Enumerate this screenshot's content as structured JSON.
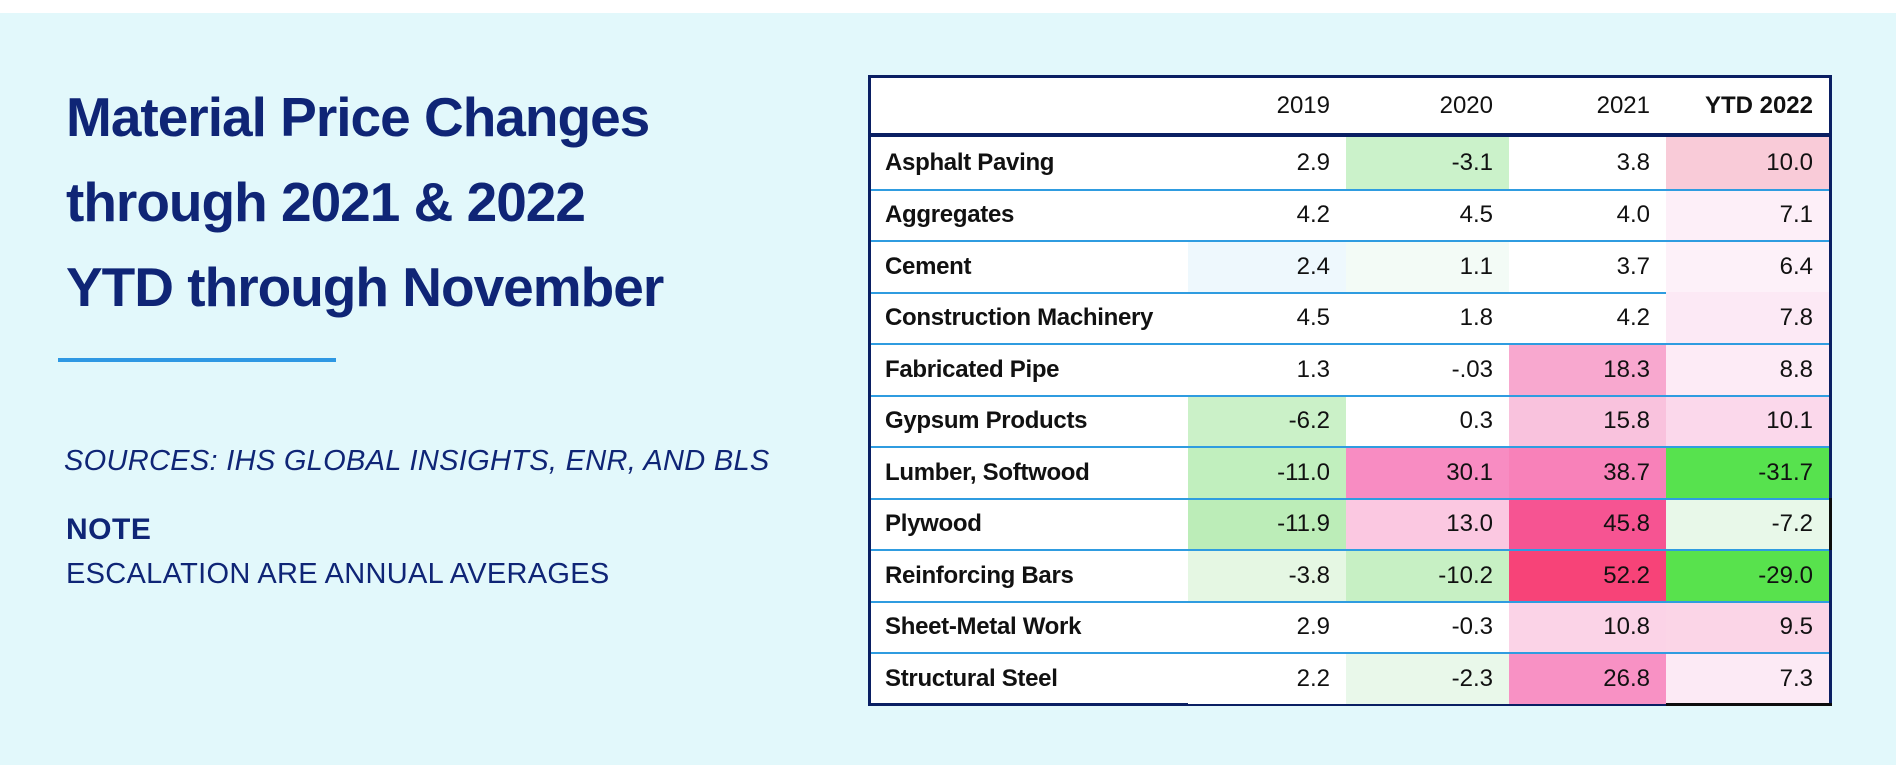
{
  "page": {
    "background_color": "#e2f8fb",
    "accent_navy": "#0f2576",
    "divider_blue": "#2e98e3",
    "separator_blue": "#2f9ce0",
    "title_lines": [
      "Material Price Changes",
      "through 2021 & 2022",
      "YTD through November"
    ],
    "sources_text": "SOURCES: IHS GLOBAL INSIGHTS, ENR, AND BLS",
    "note_label": "NOTE",
    "note_text": "ESCALATION ARE ANNUAL AVERAGES"
  },
  "chart_data": {
    "type": "table",
    "title": "Material Price Changes through 2021 & 2022 YTD through November",
    "legend_note": "cell shading: green = price decrease, pink/red = price increase; intensity scales with magnitude",
    "columns": [
      "",
      "2019",
      "2020",
      "2021",
      "YTD 2022"
    ],
    "rows": [
      {
        "material": "Asphalt Paving",
        "values": [
          "2.9",
          "-3.1",
          "3.8",
          "10.0"
        ],
        "colors": [
          "#ffffff",
          "#cbf2ca",
          "#ffffff",
          "#f9cbd8"
        ]
      },
      {
        "material": "Aggregates",
        "values": [
          "4.2",
          "4.5",
          "4.0",
          "7.1"
        ],
        "colors": [
          "#ffffff",
          "#ffffff",
          "#ffffff",
          "#fdeff8"
        ]
      },
      {
        "material": "Cement",
        "values": [
          "2.4",
          "1.1",
          "3.7",
          "6.4"
        ],
        "colors": [
          "#eef8fd",
          "#f3fbf6",
          "#ffffff",
          "#fdf1f9"
        ]
      },
      {
        "material": "Construction Machinery",
        "values": [
          "4.5",
          "1.8",
          "4.2",
          "7.8"
        ],
        "colors": [
          "#ffffff",
          "#ffffff",
          "#ffffff",
          "#fce9f5"
        ]
      },
      {
        "material": "Fabricated Pipe",
        "values": [
          "1.3",
          "-.03",
          "18.3",
          "8.8"
        ],
        "colors": [
          "#ffffff",
          "#ffffff",
          "#f8a8cf",
          "#fdebf6"
        ]
      },
      {
        "material": "Gypsum Products",
        "values": [
          "-6.2",
          "0.3",
          "15.8",
          "10.1"
        ],
        "colors": [
          "#cbf1c8",
          "#ffffff",
          "#f9c2dd",
          "#fbd8eb"
        ]
      },
      {
        "material": "Lumber, Softwood",
        "values": [
          "-11.0",
          "30.1",
          "38.7",
          "-31.7"
        ],
        "colors": [
          "#c1efbe",
          "#f88cc2",
          "#f881b9",
          "#57e24e"
        ]
      },
      {
        "material": "Plywood",
        "values": [
          "-11.9",
          "13.0",
          "45.8",
          "-7.2"
        ],
        "colors": [
          "#bcedb8",
          "#fbc8e1",
          "#f65492",
          "#e8f8e9"
        ]
      },
      {
        "material": "Reinforcing Bars",
        "values": [
          "-3.8",
          "-10.2",
          "52.2",
          "-29.0"
        ],
        "colors": [
          "#e5f7e3",
          "#c7f0c4",
          "#f74378",
          "#58e24d"
        ]
      },
      {
        "material": "Sheet-Metal Work",
        "values": [
          "2.9",
          "-0.3",
          "10.8",
          "9.5"
        ],
        "colors": [
          "#ffffff",
          "#ffffff",
          "#fbd3e7",
          "#fbd5e7"
        ]
      },
      {
        "material": "Structural Steel",
        "values": [
          "2.2",
          "-2.3",
          "26.8",
          "7.3"
        ],
        "colors": [
          "#ffffff",
          "#e9f8ea",
          "#f891c4",
          "#fceaf5"
        ]
      }
    ]
  }
}
